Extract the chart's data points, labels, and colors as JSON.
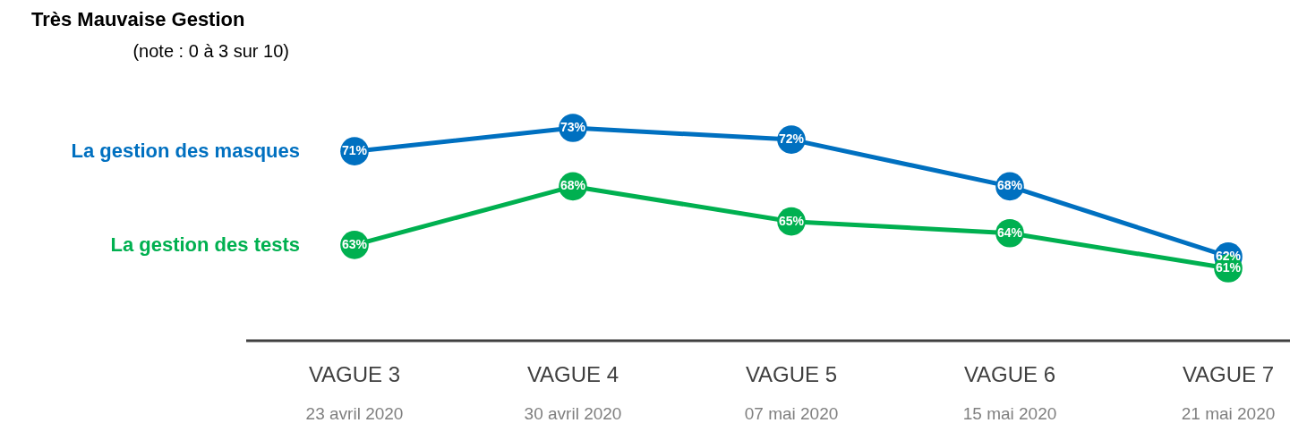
{
  "chart_data": {
    "type": "line",
    "title": "Très Mauvaise Gestion",
    "subtitle": "(note : 0 à 3 sur 10)",
    "categories": [
      "VAGUE 3",
      "VAGUE 4",
      "VAGUE 5",
      "VAGUE 6",
      "VAGUE 7"
    ],
    "series": [
      {
        "name": "La gestion des masques",
        "color": "#0070c0",
        "values": [
          71,
          73,
          72,
          68,
          62
        ],
        "value_labels": [
          "71%",
          "73%",
          "72%",
          "68%",
          "62%"
        ]
      },
      {
        "name": "La gestion des tests",
        "color": "#00b050",
        "values": [
          63,
          68,
          65,
          64,
          61
        ],
        "value_labels": [
          "63%",
          "68%",
          "65%",
          "64%",
          "61%"
        ]
      }
    ],
    "annotations": [
      "23 avril 2020",
      "30 avril 2020",
      "07 mai 2020",
      "15 mai 2020",
      "21 mai 2020"
    ],
    "marker": "circle",
    "line_style": "solid",
    "grid": false
  }
}
